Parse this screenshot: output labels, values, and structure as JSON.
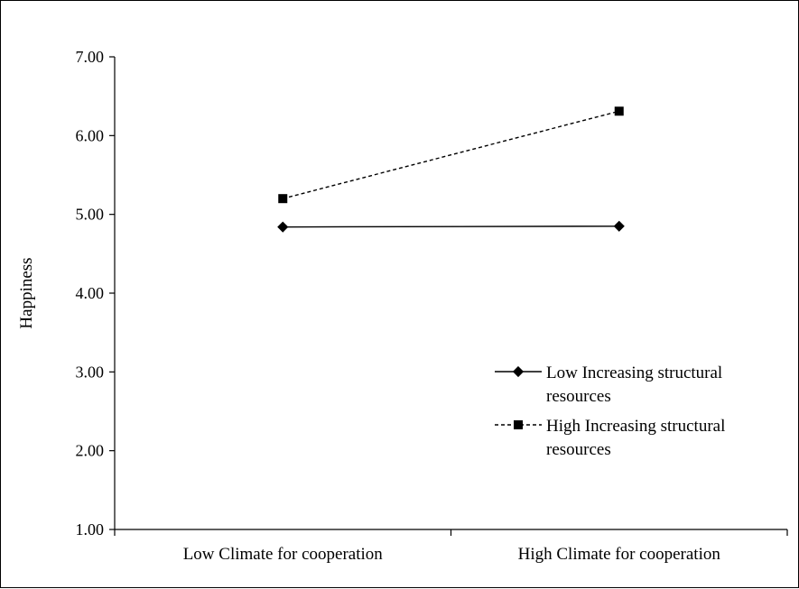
{
  "chart_data": {
    "type": "line",
    "title": "",
    "xlabel": "",
    "ylabel": "Happiness",
    "ylim": [
      1.0,
      7.0
    ],
    "yticks": [
      "1.00",
      "2.00",
      "3.00",
      "4.00",
      "5.00",
      "6.00",
      "7.00"
    ],
    "categories": [
      "Low Climate for cooperation",
      "High Climate for cooperation"
    ],
    "grid": false,
    "legend_position": "right",
    "series": [
      {
        "name": "Low Increasing structural resources",
        "name_lines": [
          "Low Increasing structural",
          "resources"
        ],
        "values": [
          4.84,
          4.85
        ],
        "marker": "diamond",
        "line_style": "solid",
        "color": "#000000"
      },
      {
        "name": "High Increasing structural resources",
        "name_lines": [
          "High Increasing structural",
          "resources"
        ],
        "values": [
          5.2,
          6.31
        ],
        "marker": "square",
        "line_style": "dashed",
        "color": "#000000"
      }
    ]
  }
}
